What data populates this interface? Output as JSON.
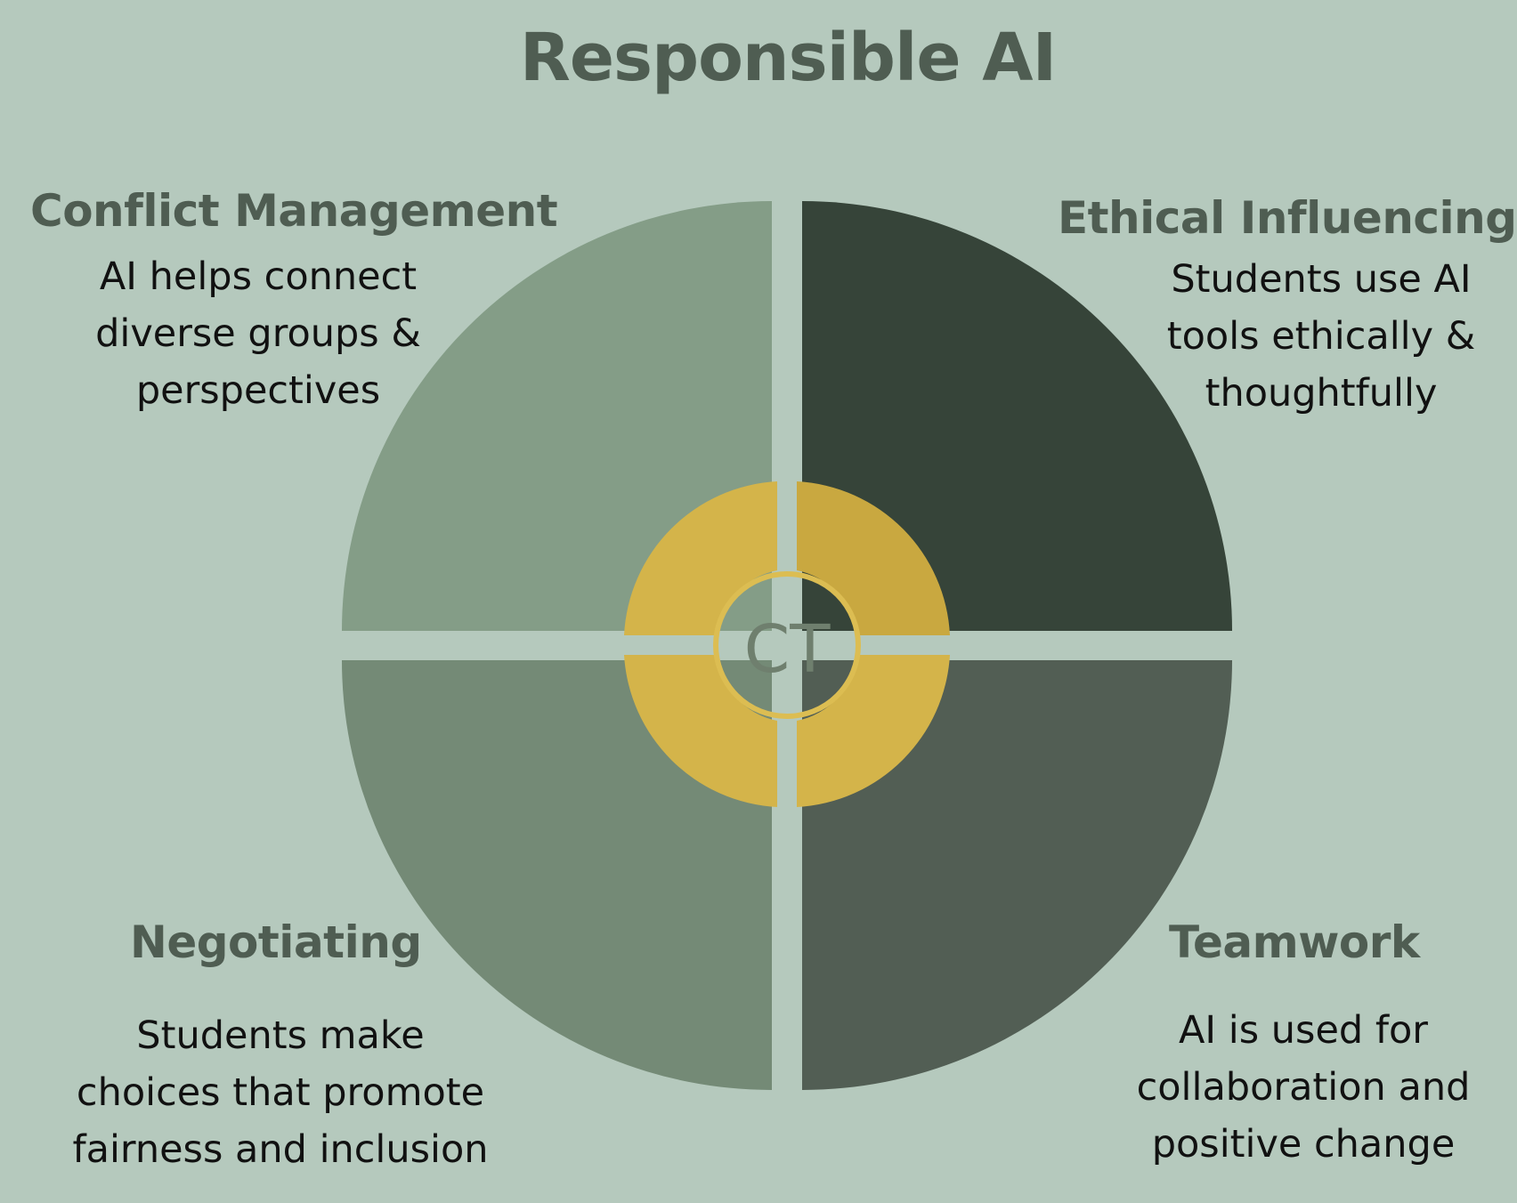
{
  "title": "Responsible AI",
  "center_label": "CT",
  "quadrants": {
    "top_left": {
      "title": "Conflict Management",
      "lines": [
        "AI helps connect",
        "diverse groups &",
        "perspectives"
      ],
      "color": "#849d87"
    },
    "top_right": {
      "title": "Ethical Influencing",
      "lines": [
        "Students use AI",
        "tools ethically &",
        "thoughtfully"
      ],
      "color": "#364439"
    },
    "bottom_left": {
      "title": "Negotiating",
      "lines": [
        "Students make",
        "choices that promote",
        "fairness and inclusion"
      ],
      "color": "#748a76"
    },
    "bottom_right": {
      "title": "Teamwork",
      "lines": [
        "AI is used for",
        "collaboration and",
        "positive change"
      ],
      "color": "#525e54"
    }
  },
  "colors": {
    "background": "#b5c9bd",
    "center_gold": "#d4b44a",
    "center_gold_dark": "#c9a840",
    "text_heading": "#4f5d52"
  }
}
